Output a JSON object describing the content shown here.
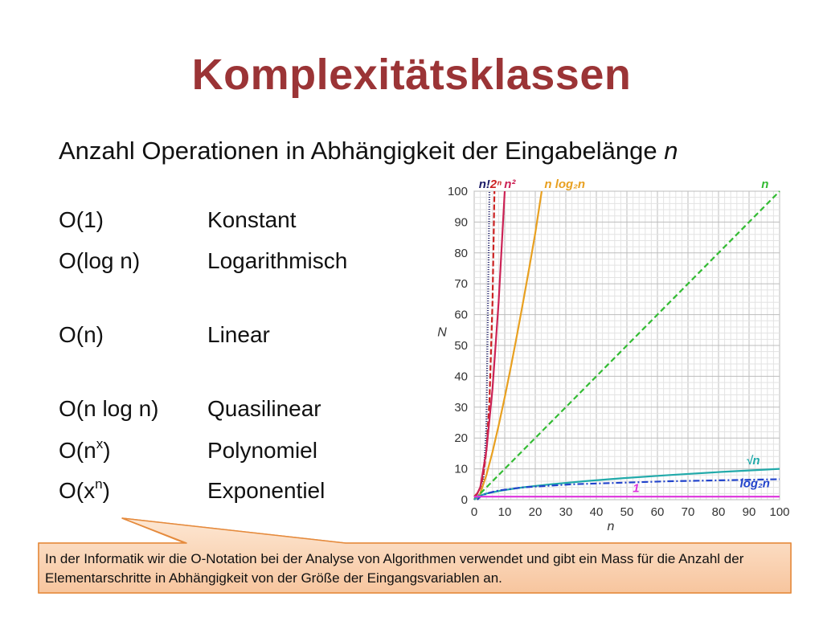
{
  "slide": {
    "title": "Komplexitätsklassen",
    "subtitle_text": "Anzahl Operationen in Abhängigkeit der Eingabelänge ",
    "subtitle_var": "n"
  },
  "classes": [
    {
      "prefix": "O(1)",
      "sup": "",
      "suffix": "",
      "desc": "Konstant"
    },
    {
      "prefix": "O(log n)",
      "sup": "",
      "suffix": "",
      "desc": "Logarithmisch"
    },
    {
      "prefix": "O(n)",
      "sup": "",
      "suffix": "",
      "desc": "Linear"
    },
    {
      "prefix": "O(n log n)",
      "sup": "",
      "suffix": "",
      "desc": "Quasilinear"
    },
    {
      "prefix": "O(n",
      "sup": "x",
      "suffix": ")",
      "desc": "Polynomiel"
    },
    {
      "prefix": "O(x",
      "sup": "n",
      "suffix": ")",
      "desc": "Exponentiel"
    }
  ],
  "callout": {
    "text": "In der Informatik wir die O-Notation bei der Analyse von Algorithmen verwendet und gibt ein Mass für die Anzahl der Elementarschritte in Abhängigkeit von der Größe der Eingangsvariablen an."
  },
  "chart_data": {
    "type": "line",
    "xlabel": "n",
    "ylabel": "N",
    "xlim": [
      0,
      100
    ],
    "ylim": [
      0,
      100
    ],
    "xticks": [
      0,
      10,
      20,
      30,
      40,
      50,
      60,
      70,
      80,
      90,
      100
    ],
    "yticks": [
      0,
      10,
      20,
      30,
      40,
      50,
      60,
      70,
      80,
      90,
      100
    ],
    "grid": true,
    "series": [
      {
        "name": "n!",
        "color": "#1a1a66",
        "dash": "1,2",
        "x": [
          0,
          1,
          2,
          3,
          4,
          5
        ],
        "y": [
          1,
          1,
          2,
          6,
          24,
          100
        ]
      },
      {
        "name": "2ⁿ",
        "color": "#cc2222",
        "dash": "7,3",
        "x": [
          0,
          1,
          2,
          3,
          4,
          5,
          6,
          6.64
        ],
        "y": [
          1,
          2,
          4,
          8,
          16,
          32,
          64,
          100
        ]
      },
      {
        "name": "n²",
        "color": "#cc2255",
        "dash": "",
        "x": [
          0,
          2,
          4,
          6,
          8,
          10
        ],
        "y": [
          0,
          4,
          16,
          36,
          64,
          100
        ]
      },
      {
        "name": "n log₂n",
        "color": "#e8a020",
        "dash": "",
        "x": [
          1,
          2,
          4,
          6,
          8,
          10,
          12,
          14,
          16,
          18,
          20,
          22.1
        ],
        "y": [
          0,
          2,
          8,
          15.5,
          24,
          33.2,
          43,
          53.3,
          64,
          75,
          86.4,
          100
        ]
      },
      {
        "name": "n",
        "color": "#33bb33",
        "dash": "7,4",
        "x": [
          0,
          100
        ],
        "y": [
          0,
          100
        ]
      },
      {
        "name": "√n",
        "color": "#22aaaa",
        "dash": "",
        "x": [
          0,
          1,
          4,
          9,
          16,
          25,
          36,
          49,
          64,
          81,
          100
        ],
        "y": [
          0,
          1,
          2,
          3,
          4,
          5,
          6,
          7,
          8,
          9,
          10
        ]
      },
      {
        "name": "log₂n",
        "color": "#2244cc",
        "dash": "8,3,2,3",
        "x": [
          1,
          2,
          4,
          8,
          16,
          32,
          64,
          100
        ],
        "y": [
          0,
          1,
          2,
          3,
          4,
          5,
          6,
          6.64
        ]
      },
      {
        "name": "1",
        "color": "#dd33dd",
        "dash": "",
        "x": [
          0,
          100
        ],
        "y": [
          1,
          1
        ]
      }
    ]
  }
}
